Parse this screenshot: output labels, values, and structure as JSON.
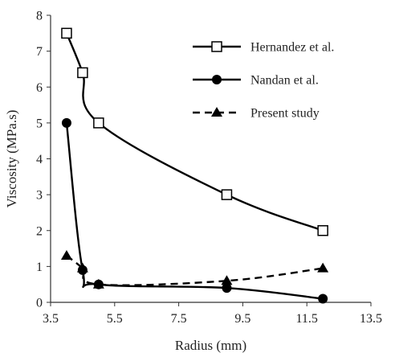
{
  "chart_data": {
    "type": "line",
    "xlabel": "Radius (mm)",
    "ylabel": "Viscosity (MPa.s)",
    "xlim": [
      3.5,
      13.5
    ],
    "ylim": [
      0,
      8
    ],
    "xticks": [
      "3.5",
      "5.5",
      "7.5",
      "9.5",
      "11.5",
      "13.5"
    ],
    "yticks": [
      "0",
      "1",
      "2",
      "3",
      "4",
      "5",
      "6",
      "7",
      "8"
    ],
    "legend_position": "top-right",
    "grid": false,
    "series": [
      {
        "name": "Hernandez et al.",
        "marker": "square-open",
        "line": "solid",
        "x": [
          4.0,
          4.5,
          5.0,
          9.0,
          12.0
        ],
        "y": [
          7.5,
          6.4,
          5.0,
          3.0,
          2.0
        ]
      },
      {
        "name": "Nandan et al.",
        "marker": "circle-filled",
        "line": "solid",
        "x": [
          4.0,
          4.5,
          5.0,
          9.0,
          12.0
        ],
        "y": [
          5.0,
          0.9,
          0.5,
          0.4,
          0.1
        ]
      },
      {
        "name": "Present study",
        "marker": "triangle-filled",
        "line": "dashed",
        "x": [
          4.0,
          4.5,
          5.0,
          9.0,
          12.0
        ],
        "y": [
          1.3,
          0.95,
          0.5,
          0.6,
          0.95
        ]
      }
    ]
  }
}
